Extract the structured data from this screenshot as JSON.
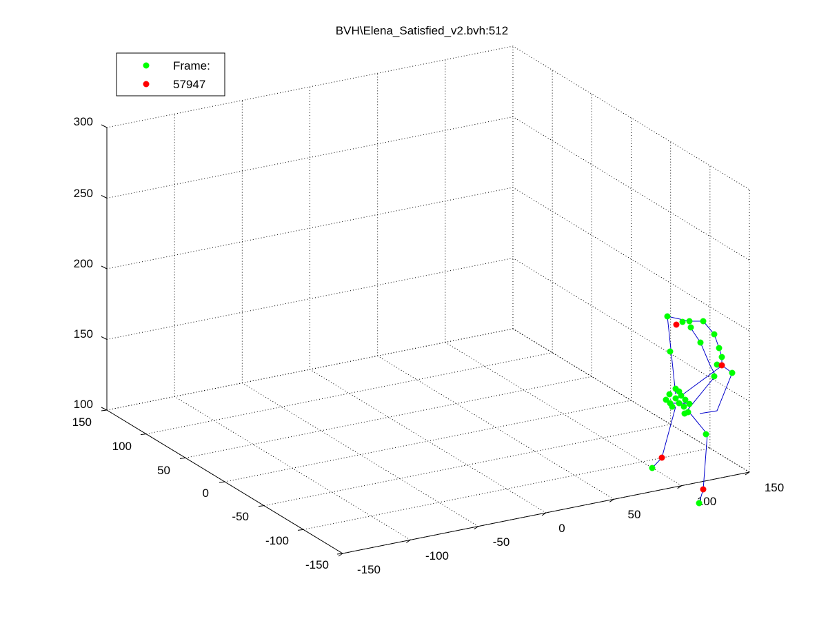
{
  "title": "BVH\\Elena_Satisfied_v2.bvh:512",
  "legend": {
    "position": "top-left",
    "entries": [
      {
        "label": "Frame:",
        "color": "#00ff00",
        "marker": "dot"
      },
      {
        "label": "57947",
        "color": "#ff0000",
        "marker": "dot"
      }
    ]
  },
  "chart_data": {
    "type": "scatter",
    "projection": "3d",
    "grid": true,
    "axes": {
      "x": {
        "ticks": [
          "-150",
          "-100",
          "-50",
          "0",
          "50",
          "100",
          "150"
        ],
        "range": [
          -150,
          150
        ]
      },
      "y": {
        "ticks": [
          "-150",
          "-100",
          "-50",
          "0",
          "50",
          "100",
          "150"
        ],
        "range": [
          -150,
          150
        ]
      },
      "z": {
        "ticks": [
          "100",
          "150",
          "200",
          "250",
          "300"
        ],
        "range": [
          100,
          300
        ]
      }
    },
    "series": [
      {
        "name": "Frame:",
        "color": "#00ff00"
      },
      {
        "name": "57947",
        "color": "#ff0000"
      }
    ],
    "skeleton_color": "#0000cc"
  }
}
